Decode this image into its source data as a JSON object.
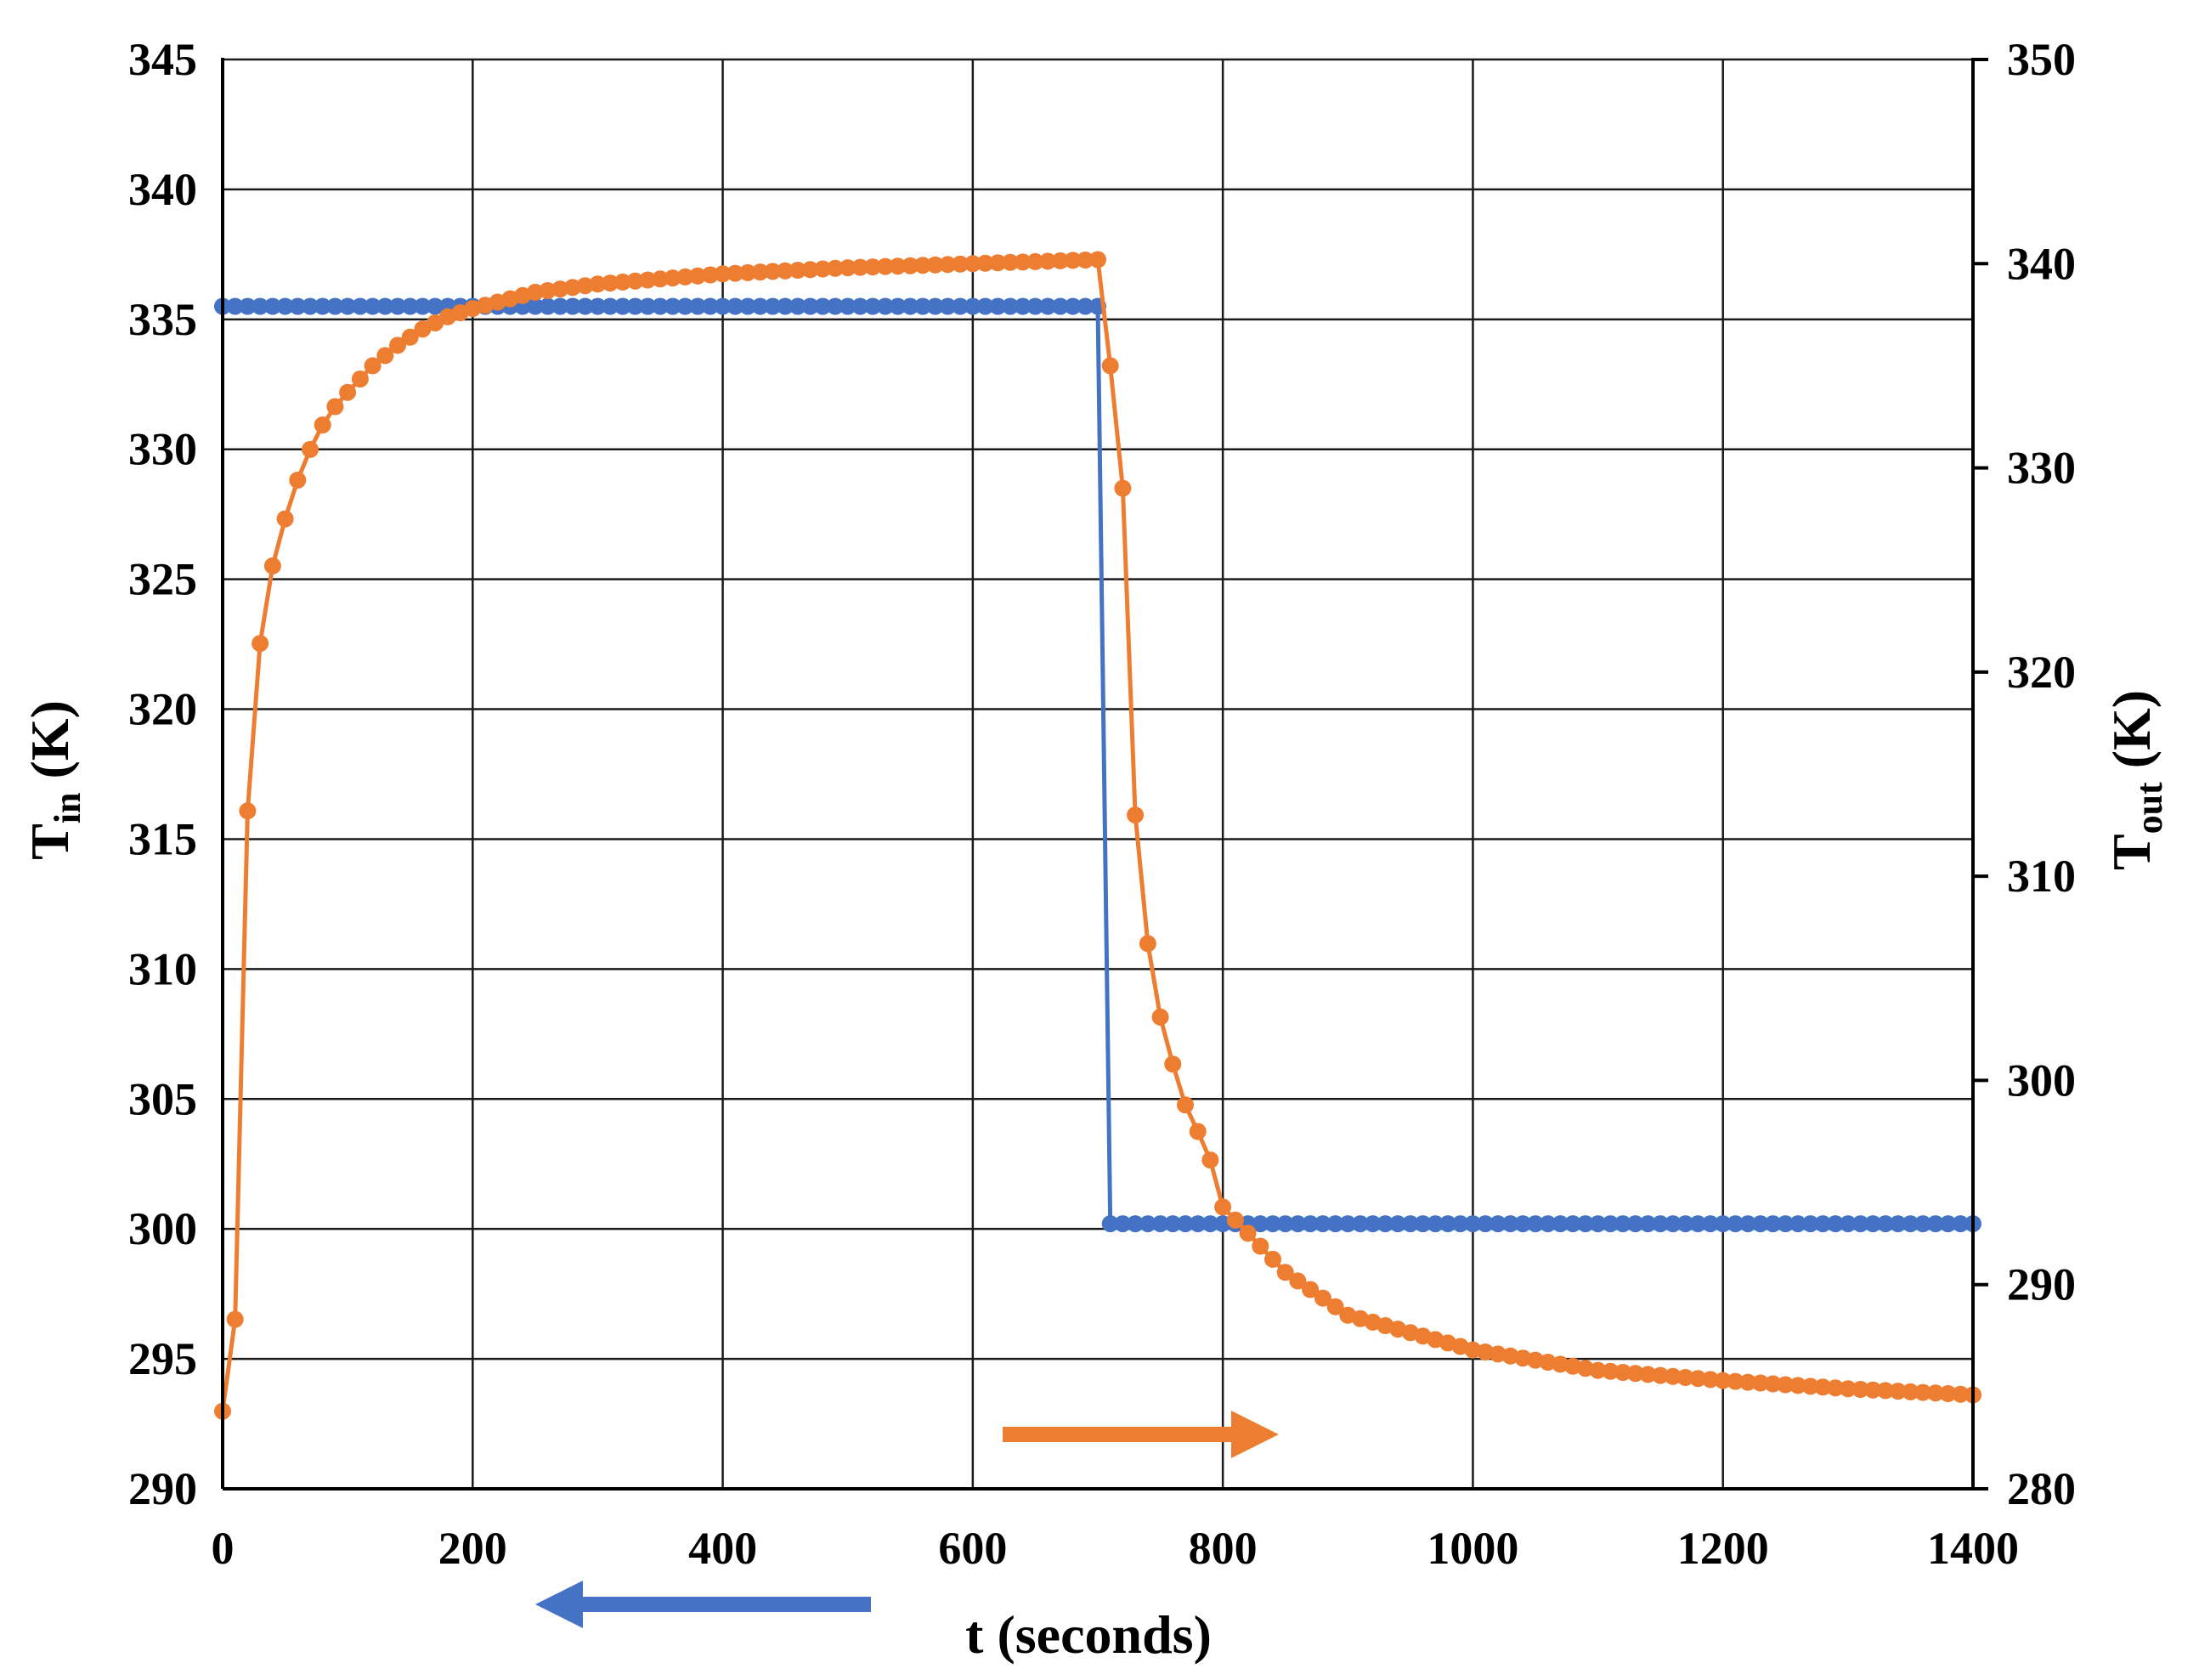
{
  "chart_data": {
    "type": "line",
    "xlabel": "t (seconds)",
    "ylabel_left": {
      "main": "T",
      "sub": "in",
      "unit": " (K)"
    },
    "ylabel_right": {
      "main": "T",
      "sub": "out",
      "unit": " (K)"
    },
    "xlim": [
      0,
      1400
    ],
    "ylim_left": [
      290,
      345
    ],
    "ylim_right": [
      280,
      350
    ],
    "x_ticks": [
      0,
      200,
      400,
      600,
      800,
      1000,
      1200,
      1400
    ],
    "y_left_ticks": [
      290,
      295,
      300,
      305,
      310,
      315,
      320,
      325,
      330,
      335,
      340,
      345
    ],
    "y_right_ticks": [
      280,
      290,
      300,
      310,
      320,
      330,
      340,
      350
    ],
    "grid": true,
    "series": [
      {
        "axis": "left",
        "color": "#4472C4",
        "marker_step": 10,
        "x": [
          0,
          700,
          710,
          1400
        ],
        "y": [
          335.5,
          335.5,
          300.2,
          300.2
        ]
      },
      {
        "axis": "right",
        "color": "#ED7D31",
        "marker_step": 10,
        "x": [
          0,
          10,
          20,
          30,
          40,
          50,
          60,
          70,
          80,
          90,
          100,
          120,
          140,
          160,
          180,
          200,
          250,
          300,
          400,
          500,
          600,
          700,
          710,
          720,
          730,
          740,
          750,
          760,
          770,
          780,
          790,
          800,
          850,
          900,
          1000,
          1100,
          1200,
          1300,
          1400
        ],
        "y": [
          283.8,
          288.3,
          313.2,
          321.4,
          325.2,
          327.5,
          329.4,
          330.9,
          332.1,
          333.0,
          333.7,
          335.0,
          336.0,
          336.8,
          337.4,
          337.8,
          338.6,
          339.0,
          339.5,
          339.8,
          340.0,
          340.2,
          335.0,
          329.0,
          313.0,
          306.7,
          303.1,
          300.8,
          298.8,
          297.5,
          296.1,
          293.8,
          290.6,
          288.5,
          286.8,
          285.8,
          285.3,
          284.9,
          284.6
        ]
      }
    ],
    "arrows": [
      {
        "color": "#ED7D31",
        "direction": "right",
        "points_to": "right"
      },
      {
        "color": "#4472C4",
        "direction": "left",
        "points_to": "left"
      }
    ]
  }
}
